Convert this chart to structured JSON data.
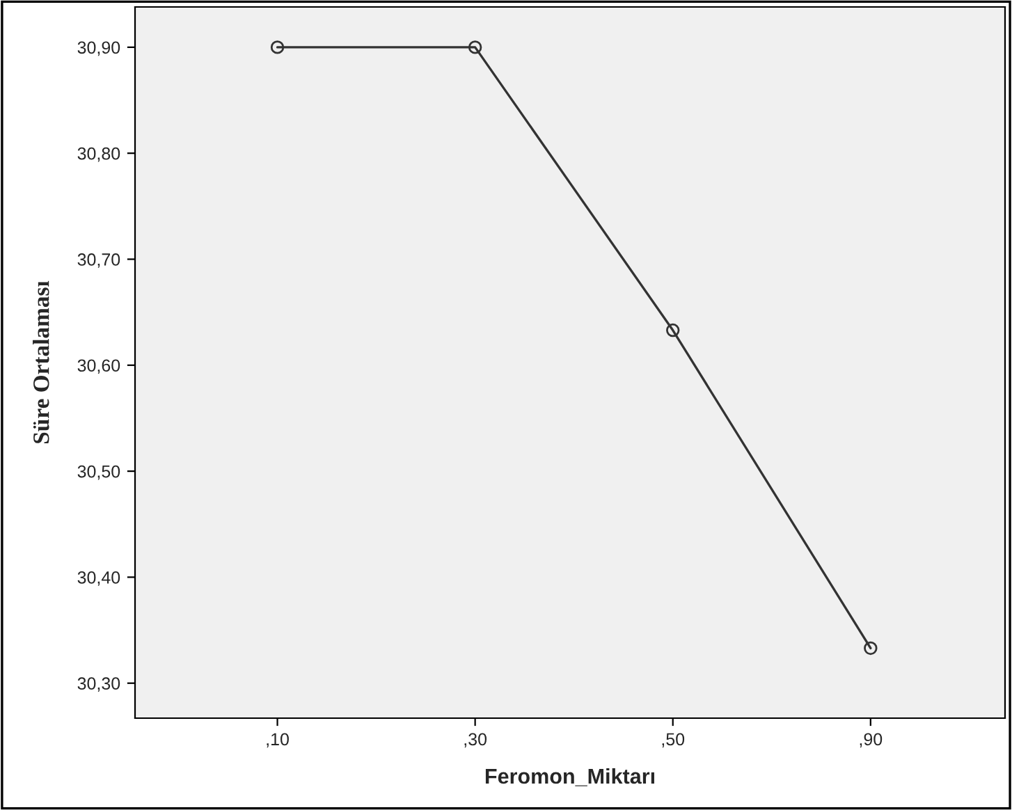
{
  "chart_data": {
    "type": "line",
    "xlabel": "Feromon_Miktarı",
    "ylabel": "Süre Ortalaması",
    "categories": [
      ",10",
      ",30",
      ",50",
      ",90"
    ],
    "series": [
      {
        "color": "#333333",
        "values": [
          30.9,
          30.9,
          30.633,
          30.333
        ]
      }
    ],
    "ylim": [
      30.267,
      30.938
    ],
    "yticks": [
      {
        "value": 30.3,
        "label": "30,30"
      },
      {
        "value": 30.4,
        "label": "30,40"
      },
      {
        "value": 30.5,
        "label": "30,50"
      },
      {
        "value": 30.6,
        "label": "30,60"
      },
      {
        "value": 30.7,
        "label": "30,70"
      },
      {
        "value": 30.8,
        "label": "30,80"
      },
      {
        "value": 30.9,
        "label": "30,90"
      }
    ],
    "marker": "circle",
    "line_style": "solid",
    "grid": false,
    "legend": false
  }
}
